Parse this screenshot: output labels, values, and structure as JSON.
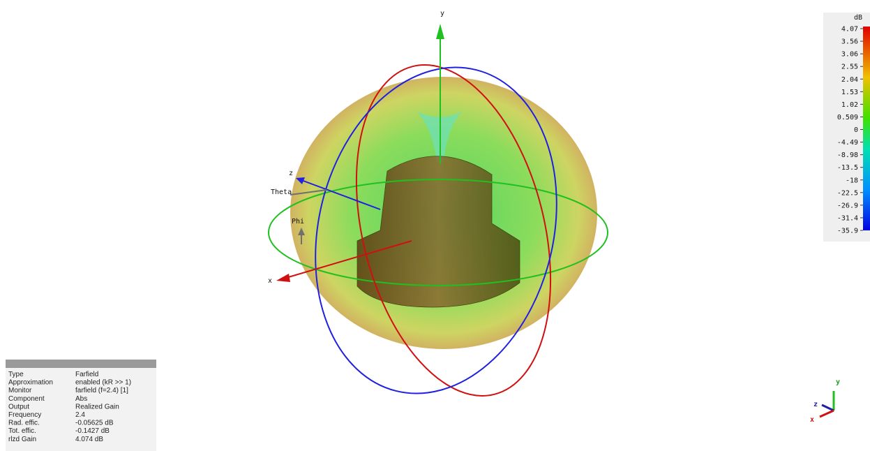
{
  "view_axes": {
    "y": "y",
    "x": "x",
    "z": "z",
    "theta": "Theta",
    "phi": "Phi"
  },
  "colorbar": {
    "unit": "dB",
    "labels": [
      "4.07",
      "3.56",
      "3.06",
      "2.55",
      "2.04",
      "1.53",
      "1.02",
      "0.509",
      "0",
      "-4.49",
      "-8.98",
      "-13.5",
      "-18",
      "-22.5",
      "-26.9",
      "-31.4",
      "-35.9"
    ]
  },
  "info_table": {
    "rows": [
      [
        "Type",
        "Farfield"
      ],
      [
        "Approximation",
        "enabled (kR >> 1)"
      ],
      [
        "Monitor",
        "farfield (f=2.4) [1]"
      ],
      [
        "Component",
        "Abs"
      ],
      [
        "Output",
        "Realized Gain"
      ],
      [
        "Frequency",
        "2.4"
      ],
      [
        "Rad. effic.",
        "-0.05625 dB"
      ],
      [
        "Tot. effic.",
        "-0.1427 dB"
      ],
      [
        "rlzd Gain",
        "4.074 dB"
      ]
    ]
  },
  "mini_axes": {
    "y": "y",
    "z": "z",
    "x": "x"
  }
}
